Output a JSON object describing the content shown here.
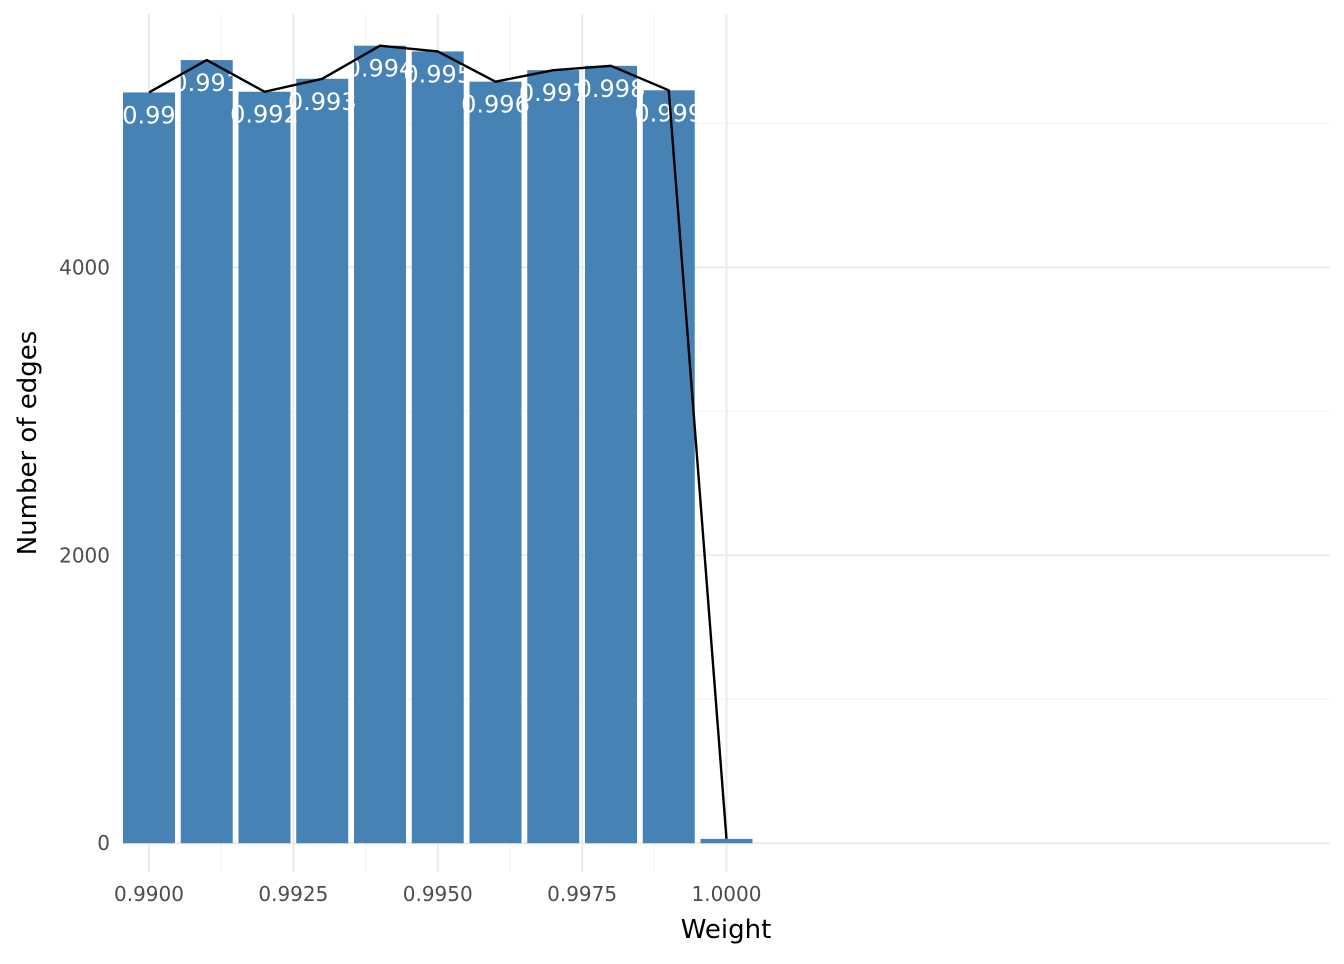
{
  "chart_data": {
    "type": "bar",
    "xlabel": "Weight",
    "ylabel": "Number of edges",
    "x": [
      0.99,
      0.991,
      0.992,
      0.993,
      0.994,
      0.995,
      0.996,
      0.997,
      0.998,
      0.999,
      1.0
    ],
    "values": [
      5215,
      5440,
      5220,
      5310,
      5540,
      5500,
      5290,
      5370,
      5400,
      5230,
      30
    ],
    "bar_labels": [
      "0.99",
      "0.991",
      "0.992",
      "0.993",
      "0.994",
      "0.995",
      "0.996",
      "0.997",
      "0.998",
      "0.999",
      ""
    ],
    "line_values": [
      5215,
      5440,
      5220,
      5310,
      5540,
      5500,
      5290,
      5370,
      5400,
      5230,
      30
    ],
    "xlim": [
      0.98955,
      1.01045
    ],
    "ylim": [
      -200,
      5760
    ],
    "x_ticks": [
      0.99,
      0.9925,
      0.995,
      0.9975,
      1.0
    ],
    "x_tick_labels": [
      "0.9900",
      "0.9925",
      "0.9950",
      "0.9975",
      "1.0000"
    ],
    "y_ticks": [
      0,
      2000,
      4000
    ],
    "y_tick_labels": [
      "0",
      "2000",
      "4000"
    ],
    "grid": true,
    "legend": "none",
    "colors": {
      "bar": "#4682b4",
      "line": "#000000",
      "bar_label": "#ffffff"
    }
  }
}
